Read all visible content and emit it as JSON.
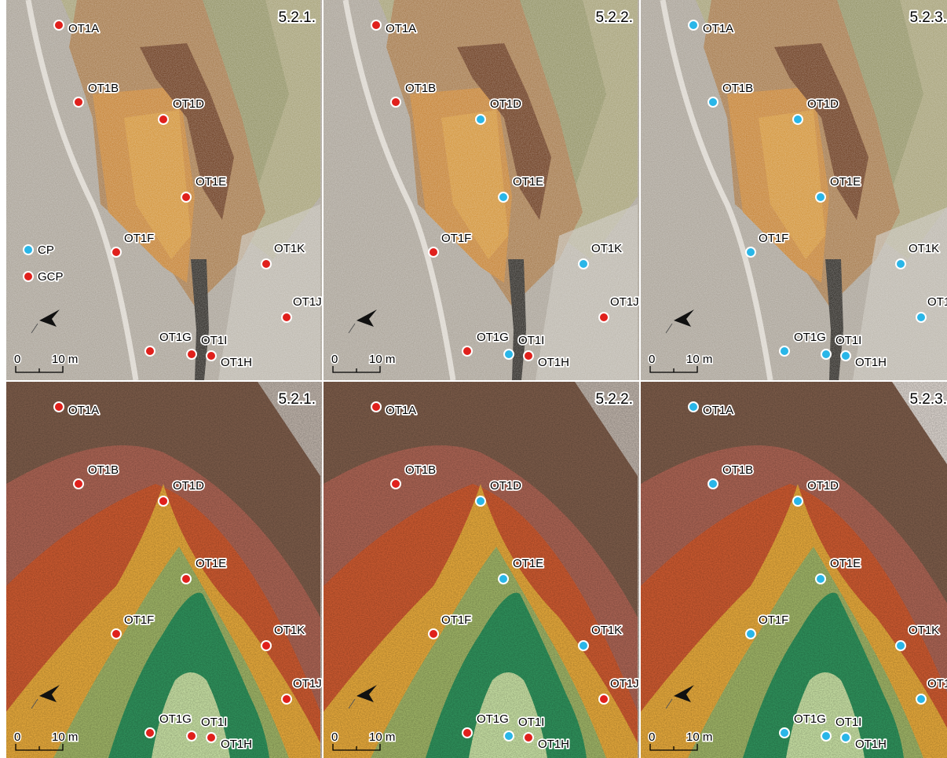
{
  "colors": {
    "cp": "#29b6e8",
    "gcp": "#e0201c",
    "dem_zones": [
      "#7a5a48",
      "#a86252",
      "#c9582f",
      "#e2a63a",
      "#9bb064",
      "#2e8f5a",
      "#c3dba0"
    ]
  },
  "legend": {
    "cp_label": "CP",
    "gcp_label": "GCP"
  },
  "scale_bar": {
    "zero": "0",
    "ten": "10 m"
  },
  "north_arrow": "north-arrow-icon",
  "points": [
    {
      "id": "OT1A"
    },
    {
      "id": "OT1B"
    },
    {
      "id": "OT1D"
    },
    {
      "id": "OT1E"
    },
    {
      "id": "OT1F"
    },
    {
      "id": "OT1K"
    },
    {
      "id": "OT1J"
    },
    {
      "id": "OT1G"
    },
    {
      "id": "OT1I"
    },
    {
      "id": "OT1H"
    }
  ],
  "panels": [
    {
      "row": "orthophoto",
      "title": "5.2.1.",
      "types": {
        "OT1A": "GCP",
        "OT1B": "GCP",
        "OT1D": "GCP",
        "OT1E": "GCP",
        "OT1F": "GCP",
        "OT1K": "GCP",
        "OT1J": "GCP",
        "OT1G": "GCP",
        "OT1I": "GCP",
        "OT1H": "GCP"
      },
      "legend": true
    },
    {
      "row": "orthophoto",
      "title": "5.2.2.",
      "types": {
        "OT1A": "GCP",
        "OT1B": "GCP",
        "OT1D": "CP",
        "OT1E": "CP",
        "OT1F": "GCP",
        "OT1K": "CP",
        "OT1J": "GCP",
        "OT1G": "GCP",
        "OT1I": "CP",
        "OT1H": "GCP"
      },
      "legend": false
    },
    {
      "row": "orthophoto",
      "title": "5.2.3.",
      "types": {
        "OT1A": "CP",
        "OT1B": "CP",
        "OT1D": "CP",
        "OT1E": "CP",
        "OT1F": "CP",
        "OT1K": "CP",
        "OT1J": "CP",
        "OT1G": "CP",
        "OT1I": "CP",
        "OT1H": "CP"
      },
      "legend": false
    },
    {
      "row": "dem",
      "title": "5.2.1.",
      "types": {
        "OT1A": "GCP",
        "OT1B": "GCP",
        "OT1D": "GCP",
        "OT1E": "GCP",
        "OT1F": "GCP",
        "OT1K": "GCP",
        "OT1J": "GCP",
        "OT1G": "GCP",
        "OT1I": "GCP",
        "OT1H": "GCP"
      },
      "legend": false
    },
    {
      "row": "dem",
      "title": "5.2.2.",
      "types": {
        "OT1A": "GCP",
        "OT1B": "GCP",
        "OT1D": "CP",
        "OT1E": "CP",
        "OT1F": "GCP",
        "OT1K": "CP",
        "OT1J": "GCP",
        "OT1G": "GCP",
        "OT1I": "CP",
        "OT1H": "GCP"
      },
      "legend": false
    },
    {
      "row": "dem",
      "title": "5.2.3.",
      "types": {
        "OT1A": "CP",
        "OT1B": "CP",
        "OT1D": "CP",
        "OT1E": "CP",
        "OT1F": "CP",
        "OT1K": "CP",
        "OT1J": "CP",
        "OT1G": "CP",
        "OT1I": "CP",
        "OT1H": "CP"
      },
      "legend": false
    }
  ]
}
